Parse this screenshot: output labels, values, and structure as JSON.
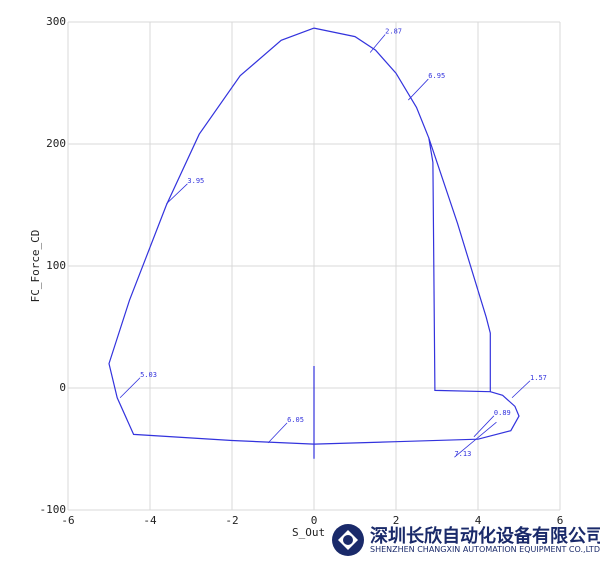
{
  "chart_data": {
    "type": "line",
    "xlabel": "S_Out",
    "ylabel": "FC_Force_CD",
    "xlim": [
      -6,
      6
    ],
    "xticks": [
      -6,
      -4,
      -2,
      0,
      2,
      4,
      6
    ],
    "ylim": [
      -100,
      300
    ],
    "yticks": [
      -100,
      0,
      100,
      200,
      300
    ],
    "grid": true,
    "series": [
      {
        "color": "#3333dd",
        "x": [
          0,
          1,
          1.5,
          2,
          2.5,
          2.8,
          3,
          3.5,
          4,
          4.2,
          4.3,
          4.3,
          4.6,
          4.9,
          5.0,
          4.8,
          4,
          2,
          0,
          -2,
          -4.4,
          -4.8,
          -5.0,
          -4.5,
          -3.6,
          -2.8,
          -1.8,
          -0.8,
          0,
          null,
          2.8,
          2.9,
          2.95,
          4.3,
          null,
          0,
          0,
          0
        ],
        "y": [
          295,
          288,
          277,
          258,
          230,
          205,
          185,
          135,
          80,
          58,
          45,
          -3,
          -6,
          -15,
          -23,
          -35,
          -42,
          -44,
          -46,
          -43,
          -38,
          -8,
          20,
          72,
          150,
          208,
          256,
          285,
          295,
          null,
          205,
          185,
          -2,
          -3,
          null,
          18,
          -46,
          -58
        ]
      }
    ],
    "annotations": [
      {
        "text": "2.87",
        "x": 1.37,
        "y": 275
      },
      {
        "text": "6.95",
        "x": 2.3,
        "y": 236
      },
      {
        "text": "3.95",
        "x": -3.6,
        "y": 151
      },
      {
        "text": "5.03",
        "x": -4.73,
        "y": -8
      },
      {
        "text": "6.05",
        "x": -1.12,
        "y": -45
      },
      {
        "text": "7.13",
        "x": 4.45,
        "y": -28
      },
      {
        "text": "0.89",
        "x": 3.9,
        "y": -40
      },
      {
        "text": "1.57",
        "x": 4.83,
        "y": -8
      }
    ]
  },
  "watermark": {
    "company": "深圳长欣自动化设备有限公司",
    "company_en": "SHENZHEN CHANGXIN AUTOMATION EQUIPMENT CO.,LTD"
  }
}
